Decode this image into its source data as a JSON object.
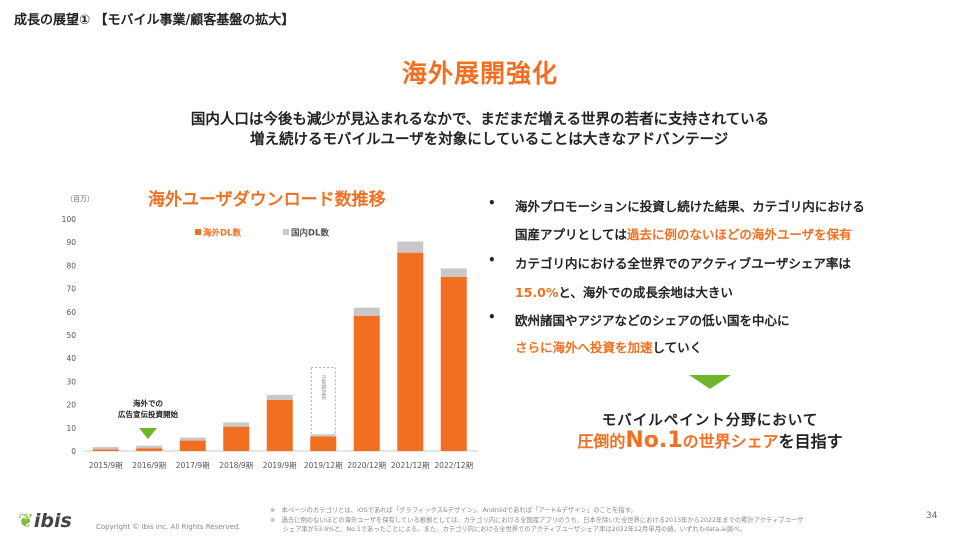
{
  "header": {
    "title": "成長の展望① 【モバイル事業/顧客基盤の拡大】",
    "headline": "海外展開強化",
    "subtitle_line1": "国内人口は今後も減少が見込まれるなかで、まだまだ増える世界の若者に支持されている",
    "subtitle_line2": "増え続けるモバイルユーザを対象にしていることは大きなアドバンテージ"
  },
  "chart_data": {
    "type": "bar",
    "stacked": true,
    "title": "海外ユーザダウンロード数推移",
    "ylabel": "（百万）",
    "xlabel": "",
    "ylim": [
      0,
      100
    ],
    "yticks": [
      "0",
      "10",
      "20",
      "30",
      "40",
      "50",
      "60",
      "70",
      "80",
      "90",
      "100"
    ],
    "categories": [
      "2015/9期",
      "2016/9期",
      "2017/9期",
      "2018/9期",
      "2019/9期",
      "2019/12期",
      "2020/12期",
      "2021/12期",
      "2022/12期"
    ],
    "series": [
      {
        "name": "海外DL数",
        "color": "#f26f21",
        "values": [
          0.7,
          1.2,
          4.5,
          10.5,
          22,
          6.3,
          58.3,
          85.5,
          75
        ]
      },
      {
        "name": "国内DL数",
        "color": "#c8c8c8",
        "values": [
          1.0,
          1.1,
          1.3,
          1.8,
          2.2,
          0.7,
          3.5,
          4.8,
          3.7
        ]
      }
    ],
    "legend_position": "top",
    "annotations": {
      "fiscal_change": "決算期変更",
      "ad_start_line1": "海外での",
      "ad_start_line2": "広告宣伝投資開始"
    }
  },
  "bullets": [
    {
      "line1": [
        {
          "t": "海外プロモーションに投資し続けた結果、カテゴリ内における"
        }
      ],
      "line2": [
        {
          "t": "国産アプリとしては"
        },
        {
          "t": "過去に例のないほどの海外ユーザを保有",
          "hl": true
        }
      ]
    },
    {
      "line1": [
        {
          "t": "カテゴリ内における全世界でのアクティブユーザシェア率は"
        }
      ],
      "line2": [
        {
          "t": "15.0%",
          "hl": true
        },
        {
          "t": "と、海外での成長余地は大きい"
        }
      ]
    },
    {
      "line1": [
        {
          "t": "欧州諸国やアジアなどのシェアの低い国を中心に"
        }
      ],
      "line2": [
        {
          "t": "さらに海外へ投資を加速",
          "hl": true
        },
        {
          "t": "していく"
        }
      ]
    }
  ],
  "bullet_mark": "•",
  "conclusion": {
    "line1": "モバイルペイント分野において",
    "p1": "圧倒的",
    "p2": "No.1",
    "p3": "の世界シェア",
    "p4": "を目指す"
  },
  "footer": {
    "logo": "ibis",
    "copyright": "Copyright © ibis inc. All Rights Reserved.",
    "note1": "※　本ページのカテゴリとは、iOSであれば「グラフィックス&デザイン」、Androidであれば「アート&デザイン」のことを指す。",
    "note2": "※　過去に例のないほどの海外ユーザを保有している根拠としては、カテゴリ内における全国産アプリのうち、日本を除いた全世界における2013年から2022年までの累計アクティブユーザ",
    "note3": "　　シェア率が53.9%と、No.1であったことによる。また、カテゴリ内における全世界でのアクティブユーザシェア率は2022年12月単月の値。いずれもdata.ai調べ。",
    "page": "34"
  }
}
